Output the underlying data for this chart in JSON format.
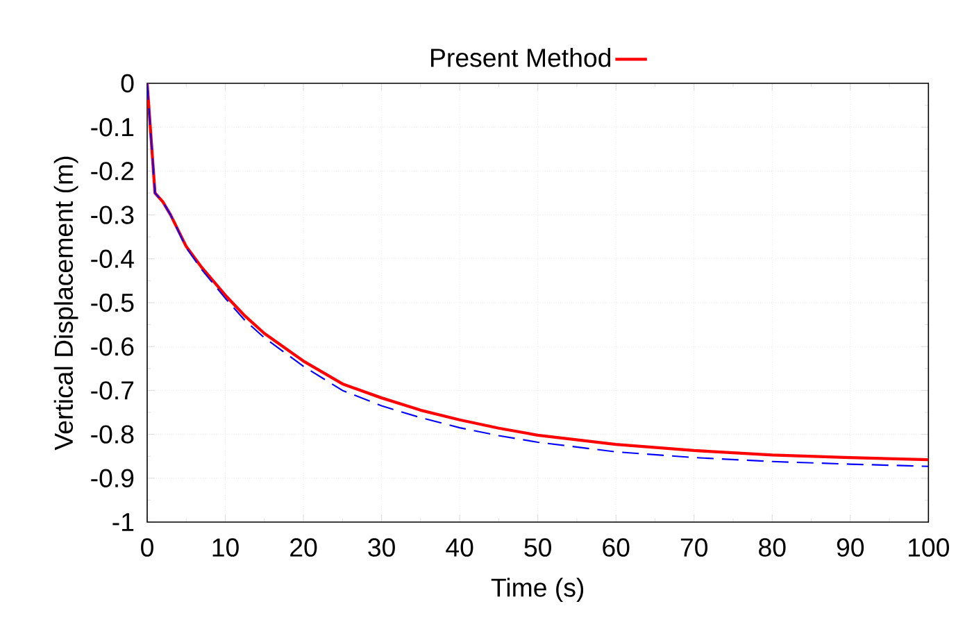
{
  "chart_data": {
    "type": "line",
    "xlabel": "Time (s)",
    "ylabel": "Vertical Displacement (m)",
    "x": [
      0,
      1,
      2,
      3,
      5,
      7,
      10,
      12.5,
      15,
      20,
      25,
      30,
      35,
      40,
      45,
      50,
      60,
      70,
      80,
      90,
      100
    ],
    "series": [
      {
        "name": "Present Method",
        "color": "#ff0000",
        "line_style": "solid",
        "values": [
          0,
          -0.25,
          -0.27,
          -0.3,
          -0.372,
          -0.42,
          -0.483,
          -0.53,
          -0.57,
          -0.633,
          -0.685,
          -0.717,
          -0.745,
          -0.767,
          -0.786,
          -0.802,
          -0.823,
          -0.837,
          -0.847,
          -0.853,
          -0.858
        ]
      },
      {
        "color": "#0000ff",
        "line_style": "dashed",
        "values": [
          0,
          -0.25,
          -0.27,
          -0.3,
          -0.375,
          -0.425,
          -0.49,
          -0.54,
          -0.58,
          -0.645,
          -0.7,
          -0.735,
          -0.762,
          -0.785,
          -0.803,
          -0.818,
          -0.84,
          -0.853,
          -0.862,
          -0.868,
          -0.873
        ]
      }
    ],
    "xlim": [
      0,
      100
    ],
    "ylim": [
      -1,
      0
    ],
    "xticks": [
      0,
      10,
      20,
      30,
      40,
      50,
      60,
      70,
      80,
      90,
      100
    ],
    "yticks": [
      0,
      -0.1,
      -0.2,
      -0.3,
      -0.4,
      -0.5,
      -0.6,
      -0.7,
      -0.8,
      -0.9,
      -1
    ],
    "grid": true,
    "legend": "top",
    "marker": "none"
  }
}
